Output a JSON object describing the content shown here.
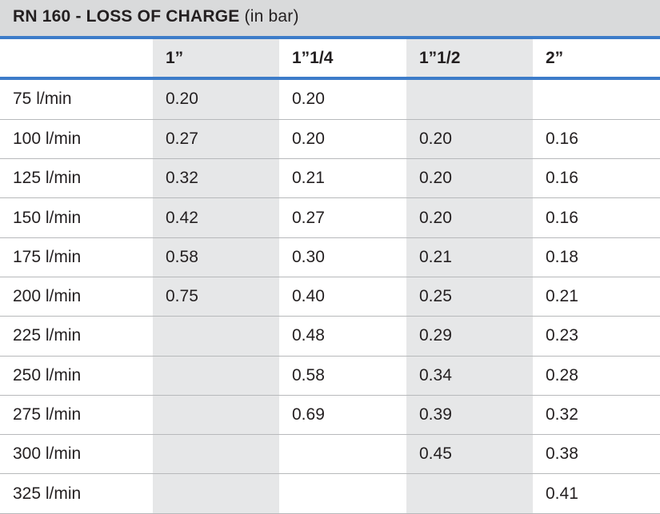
{
  "title": {
    "bold": "RN 160 - LOSS OF CHARGE",
    "normal": " (in bar)"
  },
  "columns": [
    "",
    "1”",
    "1”1/4",
    "1”1/2",
    "2”"
  ],
  "rows": [
    [
      "75 l/min",
      "0.20",
      "0.20",
      "",
      ""
    ],
    [
      "100 l/min",
      "0.27",
      "0.20",
      "0.20",
      "0.16"
    ],
    [
      "125 l/min",
      "0.32",
      "0.21",
      "0.20",
      "0.16"
    ],
    [
      "150 l/min",
      "0.42",
      "0.27",
      "0.20",
      "0.16"
    ],
    [
      "175 l/min",
      "0.58",
      "0.30",
      "0.21",
      "0.18"
    ],
    [
      "200 l/min",
      "0.75",
      "0.40",
      "0.25",
      "0.21"
    ],
    [
      "225 l/min",
      "",
      "0.48",
      "0.29",
      "0.23"
    ],
    [
      "250 l/min",
      "",
      "0.58",
      "0.34",
      "0.28"
    ],
    [
      "275 l/min",
      "",
      "0.69",
      "0.39",
      "0.32"
    ],
    [
      "300 l/min",
      "",
      "",
      "0.45",
      "0.38"
    ],
    [
      "325 l/min",
      "",
      "",
      "",
      "0.41"
    ]
  ],
  "colors": {
    "title_bg": "#d9dadb",
    "accent_rule": "#3d7cc9",
    "shaded_column": "#e6e7e8",
    "row_divider": "#b7b9bb"
  }
}
